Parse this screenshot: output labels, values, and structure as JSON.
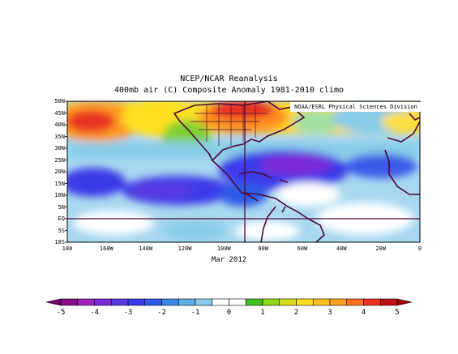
{
  "header": {
    "title": "NCEP/NCAR Reanalysis",
    "subtitle": "400mb air (C) Composite Anomaly 1981-2010 climo"
  },
  "credit": "NOAA/ESRL Physical Sciences Division",
  "date_label": "Mar 2012",
  "map": {
    "lat_labels": [
      "50N",
      "45N",
      "40N",
      "35N",
      "30N",
      "25N",
      "20N",
      "15N",
      "10N",
      "5N",
      "EQ",
      "5S",
      "10S"
    ],
    "lon_labels": [
      "180",
      "160W",
      "140W",
      "120W",
      "100W",
      "80W",
      "60W",
      "40W",
      "20W",
      "0"
    ],
    "colors": {
      "frame": "#000000",
      "coastline": "#4a0a3a",
      "reference_line": "#4a0a3a"
    }
  },
  "colorbar": {
    "labels": [
      "-5",
      "-4",
      "-3",
      "-2",
      "-1",
      "0",
      "1",
      "2",
      "3",
      "4",
      "5"
    ],
    "colors": [
      "#8a0a8a",
      "#a020c0",
      "#7a2ad8",
      "#5a3ae0",
      "#3a3ae8",
      "#2e5ae8",
      "#3a86e8",
      "#5aaee8",
      "#88cce8",
      "#ffffff",
      "#ffffff",
      "#40c020",
      "#90d818",
      "#d8e020",
      "#ffe020",
      "#ffc020",
      "#ffa020",
      "#ff7020",
      "#f03020",
      "#c01010"
    ],
    "end_colors": [
      "#6a006a",
      "#a00000"
    ]
  }
}
